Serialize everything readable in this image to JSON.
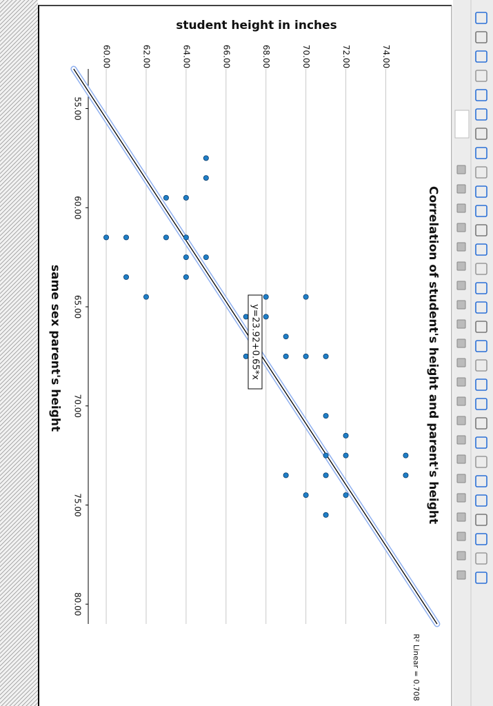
{
  "chart_data": {
    "type": "scatter",
    "title": "Correlation of student's height and parent's height",
    "x_label": "same sex parent's height",
    "y_label": "student height in inches",
    "x": [
      57.5,
      58.5,
      59.5,
      59.5,
      61.5,
      61.5,
      61.5,
      61.5,
      62.5,
      62.5,
      63.5,
      63.5,
      64.5,
      64.5,
      64.5,
      65.5,
      65.5,
      66.5,
      67.5,
      67.5,
      67.5,
      67.5,
      70.5,
      71.5,
      72.5,
      72.5,
      72.5,
      73.5,
      73.5,
      73.5,
      74.5,
      74.5,
      75.5
    ],
    "values": [
      65,
      65,
      63,
      64,
      60,
      61,
      63,
      64,
      64,
      65,
      61,
      64,
      62,
      68,
      70,
      67,
      68,
      69,
      67,
      69,
      70,
      71,
      71,
      72,
      71,
      72,
      75,
      69,
      71,
      75,
      70,
      72,
      71
    ],
    "color": "#1f7fc8",
    "xlim": [
      53,
      81
    ],
    "ylim": [
      59.1,
      75.4
    ],
    "xticks": [
      {
        "value": 55,
        "label": "55.00"
      },
      {
        "value": 60,
        "label": "60.00"
      },
      {
        "value": 65,
        "label": "65.00"
      },
      {
        "value": 70,
        "label": "70.00"
      },
      {
        "value": 75,
        "label": "75.00"
      },
      {
        "value": 80,
        "label": "80.00"
      }
    ],
    "yticks": [
      {
        "value": 60,
        "label": "60.00"
      },
      {
        "value": 62,
        "label": "62.00"
      },
      {
        "value": 64,
        "label": "64.00"
      },
      {
        "value": 66,
        "label": "66.00"
      },
      {
        "value": 68,
        "label": "68.00"
      },
      {
        "value": 70,
        "label": "70.00"
      },
      {
        "value": 72,
        "label": "72.00"
      },
      {
        "value": 74,
        "label": "74.00"
      }
    ],
    "grid": true,
    "fit": {
      "intercept": 23.92,
      "slope": 0.65,
      "label": "y=23.92+0.65*x",
      "r2_label": "R² Linear = 0.708"
    }
  }
}
